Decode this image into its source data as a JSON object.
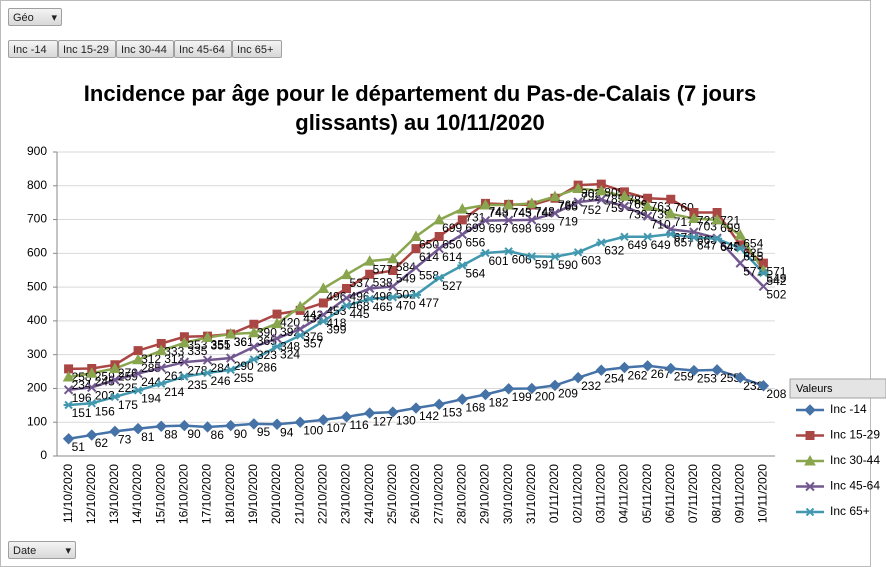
{
  "filters": {
    "geo": "Géo",
    "buttons": [
      "Inc -14",
      "Inc 15-29",
      "Inc 30-44",
      "Inc 45-64",
      "Inc 65+"
    ],
    "date": "Date",
    "legend_title": "Valeurs"
  },
  "chart_data": {
    "type": "line",
    "title": "Incidence par âge pour le département du Pas-de-Calais  (7 jours glissants) au 10/11/2020",
    "categories": [
      "11/10/2020",
      "12/10/2020",
      "13/10/2020",
      "14/10/2020",
      "15/10/2020",
      "16/10/2020",
      "17/10/2020",
      "18/10/2020",
      "19/10/2020",
      "20/10/2020",
      "21/10/2020",
      "22/10/2020",
      "23/10/2020",
      "24/10/2020",
      "25/10/2020",
      "26/10/2020",
      "27/10/2020",
      "28/10/2020",
      "29/10/2020",
      "30/10/2020",
      "31/10/2020",
      "01/11/2020",
      "02/11/2020",
      "03/11/2020",
      "04/11/2020",
      "05/11/2020",
      "06/11/2020",
      "07/11/2020",
      "08/11/2020",
      "09/11/2020",
      "10/11/2020"
    ],
    "series": [
      {
        "name": "Inc -14",
        "color": "#4572a7",
        "marker": "diamond",
        "values": [
          51,
          62,
          73,
          81,
          88,
          90,
          86,
          90,
          95,
          94,
          100,
          107,
          116,
          127,
          130,
          142,
          153,
          168,
          182,
          199,
          200,
          209,
          232,
          254,
          262,
          267,
          259,
          253,
          255,
          232,
          208
        ]
      },
      {
        "name": "Inc 15-29",
        "color": "#aa4643",
        "marker": "square",
        "values": [
          258,
          259,
          270,
          312,
          333,
          353,
          355,
          361,
          390,
          420,
          431,
          453,
          496,
          538,
          549,
          614,
          650,
          699,
          748,
          745,
          743,
          763,
          802,
          805,
          782,
          763,
          760,
          721,
          721,
          625,
          571
        ]
      },
      {
        "name": "Inc 30-44",
        "color": "#89a54e",
        "marker": "triangle",
        "values": [
          234,
          245,
          259,
          285,
          312,
          335,
          351,
          361,
          365,
          392,
          442,
          496,
          537,
          577,
          584,
          650,
          699,
          731,
          743,
          743,
          748,
          768,
          792,
          785,
          769,
          739,
          717,
          703,
          699,
          654,
          549
        ]
      },
      {
        "name": "Inc 45-64",
        "color": "#71588f",
        "marker": "x",
        "values": [
          196,
          203,
          225,
          244,
          261,
          278,
          284,
          290,
          323,
          348,
          376,
          418,
          468,
          496,
          502,
          558,
          614,
          656,
          697,
          698,
          699,
          719,
          752,
          759,
          739,
          710,
          671,
          663,
          645,
          571,
          502
        ]
      },
      {
        "name": "Inc 65+",
        "color": "#4198af",
        "marker": "star",
        "values": [
          151,
          156,
          175,
          194,
          214,
          235,
          246,
          255,
          286,
          324,
          357,
          399,
          445,
          465,
          470,
          477,
          527,
          564,
          601,
          606,
          591,
          590,
          603,
          632,
          649,
          649,
          657,
          647,
          643,
          615,
          542
        ]
      }
    ],
    "ylim": [
      0,
      900
    ],
    "yticks": [
      0,
      100,
      200,
      300,
      400,
      500,
      600,
      700,
      800,
      900
    ],
    "grid": true,
    "legend": "right"
  }
}
